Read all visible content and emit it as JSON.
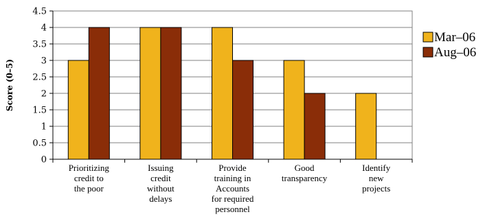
{
  "chart_data": {
    "type": "bar",
    "ylabel": "Score (0–5)",
    "ylim": [
      0,
      4.5
    ],
    "ytick_step": 0.5,
    "ytick_labels": [
      "0",
      "0.5",
      "1",
      "1.5",
      "2",
      "2.5",
      "3",
      "3.5",
      "4",
      "4.5"
    ],
    "grid": true,
    "legend_position": "right",
    "categories": [
      [
        "Prioritizing",
        "credit to",
        "the poor"
      ],
      [
        "Issuing",
        "credit",
        "without",
        "delays"
      ],
      [
        "Provide",
        "training in",
        "Accounts",
        "for required",
        "personnel"
      ],
      [
        "Good",
        "transparency"
      ],
      [
        "Identify",
        "new",
        "projects"
      ]
    ],
    "series": [
      {
        "name": "Mar–06",
        "color": "#F0B31C",
        "values": [
          3,
          4,
          4,
          3,
          2
        ]
      },
      {
        "name": "Aug–06",
        "color": "#8A2D08",
        "values": [
          4,
          4,
          3,
          2,
          0
        ]
      }
    ]
  }
}
